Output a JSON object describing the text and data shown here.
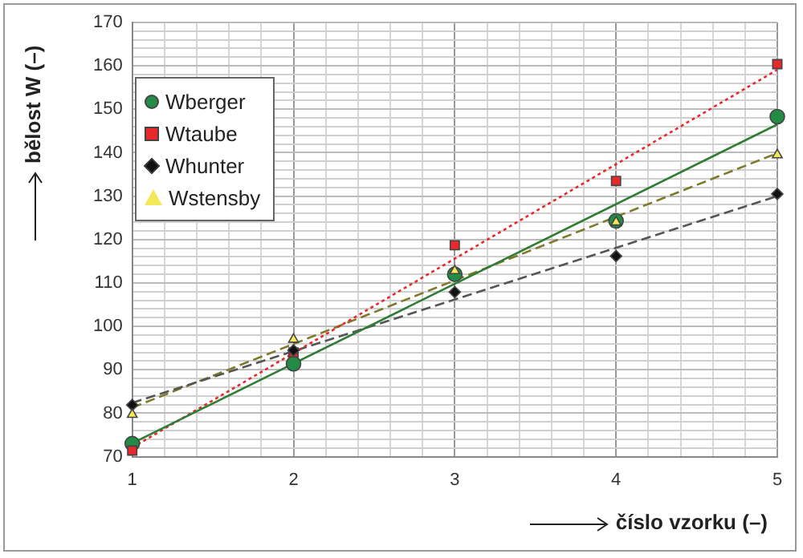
{
  "chart_data": {
    "type": "scatter",
    "xlabel": "číslo vzorku (–)",
    "ylabel": "bělost W (–)",
    "xlim": [
      1,
      5
    ],
    "ylim": [
      70,
      170
    ],
    "xticks": [
      1,
      {
        "value": 1.2,
        "label": null
      },
      {
        "value": 1.4,
        "label": null
      },
      {
        "value": 1.6,
        "label": null
      },
      {
        "value": 1.8,
        "label": null
      },
      2,
      {
        "value": 2.2,
        "label": null
      },
      {
        "value": 2.4,
        "label": null
      },
      {
        "value": 2.6,
        "label": null
      },
      {
        "value": 2.8,
        "label": null
      },
      3,
      {
        "value": 3.2,
        "label": null
      },
      {
        "value": 3.4,
        "label": null
      },
      {
        "value": 3.6,
        "label": null
      },
      {
        "value": 3.8,
        "label": null
      },
      4,
      {
        "value": 4.2,
        "label": null
      },
      {
        "value": 4.4,
        "label": null
      },
      {
        "value": 4.6,
        "label": null
      },
      {
        "value": 4.8,
        "label": null
      },
      5
    ],
    "yticks": [
      70,
      {
        "value": 72,
        "label": null
      },
      {
        "value": 74,
        "label": null
      },
      {
        "value": 76,
        "label": null
      },
      {
        "value": 78,
        "label": null
      },
      80,
      {
        "value": 82,
        "label": null
      },
      {
        "value": 84,
        "label": null
      },
      {
        "value": 86,
        "label": null
      },
      {
        "value": 88,
        "label": null
      },
      90,
      {
        "value": 92,
        "label": null
      },
      {
        "value": 94,
        "label": null
      },
      {
        "value": 96,
        "label": null
      },
      {
        "value": 98,
        "label": null
      },
      100,
      {
        "value": 102,
        "label": null
      },
      {
        "value": 104,
        "label": null
      },
      {
        "value": 106,
        "label": null
      },
      {
        "value": 108,
        "label": null
      },
      110,
      {
        "value": 112,
        "label": null
      },
      {
        "value": 114,
        "label": null
      },
      {
        "value": 116,
        "label": null
      },
      {
        "value": 118,
        "label": null
      },
      120,
      {
        "value": 122,
        "label": null
      },
      {
        "value": 124,
        "label": null
      },
      {
        "value": 126,
        "label": null
      },
      {
        "value": 128,
        "label": null
      },
      130,
      {
        "value": 132,
        "label": null
      },
      {
        "value": 134,
        "label": null
      },
      {
        "value": 136,
        "label": null
      },
      {
        "value": 138,
        "label": null
      },
      140,
      {
        "value": 142,
        "label": null
      },
      {
        "value": 144,
        "label": null
      },
      {
        "value": 146,
        "label": null
      },
      {
        "value": 148,
        "label": null
      },
      150,
      {
        "value": 152,
        "label": null
      },
      {
        "value": 154,
        "label": null
      },
      {
        "value": 156,
        "label": null
      },
      {
        "value": 158,
        "label": null
      },
      160,
      {
        "value": 162,
        "label": null
      },
      {
        "value": 164,
        "label": null
      },
      {
        "value": 166,
        "label": null
      },
      {
        "value": 168,
        "label": null
      },
      170
    ],
    "grid": true,
    "legend": "top left",
    "series": [
      {
        "name": "Wberger",
        "color": "#238b45",
        "marker": "circle",
        "x": [
          1,
          2,
          3,
          4,
          5
        ],
        "values": [
          73,
          91.4,
          112,
          124.3,
          148.3
        ]
      },
      {
        "name": "Wtaube",
        "color": "#e8282b",
        "marker": "square",
        "x": [
          1,
          2,
          3,
          4,
          5
        ],
        "values": [
          71.4,
          94,
          118.7,
          133.5,
          160.4
        ]
      },
      {
        "name": "Whunter",
        "color": "#111111",
        "marker": "diamond",
        "x": [
          1,
          2,
          3,
          4,
          5
        ],
        "values": [
          81.9,
          94.5,
          107.9,
          116.2,
          130.5
        ]
      },
      {
        "name": "Wstensby",
        "color": "#f2e85a",
        "marker": "triangle",
        "x": [
          1,
          2,
          3,
          4,
          5
        ],
        "values": [
          79.7,
          97,
          112.8,
          124,
          139.5
        ]
      },
      {
        "type": "line",
        "color": "#2e7d32",
        "line_style": "solid",
        "x": [
          1,
          5
        ],
        "values": [
          73.1,
          146.5
        ]
      },
      {
        "type": "line",
        "color": "#e8282b",
        "line_style": "dotted",
        "x": [
          1,
          5
        ],
        "values": [
          72.1,
          159.1
        ]
      },
      {
        "type": "line",
        "color": "#555555",
        "line_style": "dashed",
        "x": [
          1,
          5
        ],
        "values": [
          82.4,
          130
        ]
      },
      {
        "type": "line",
        "color": "#7f7a2a",
        "line_style": "dashed",
        "x": [
          1,
          5
        ],
        "values": [
          81.3,
          139.9
        ]
      }
    ]
  }
}
